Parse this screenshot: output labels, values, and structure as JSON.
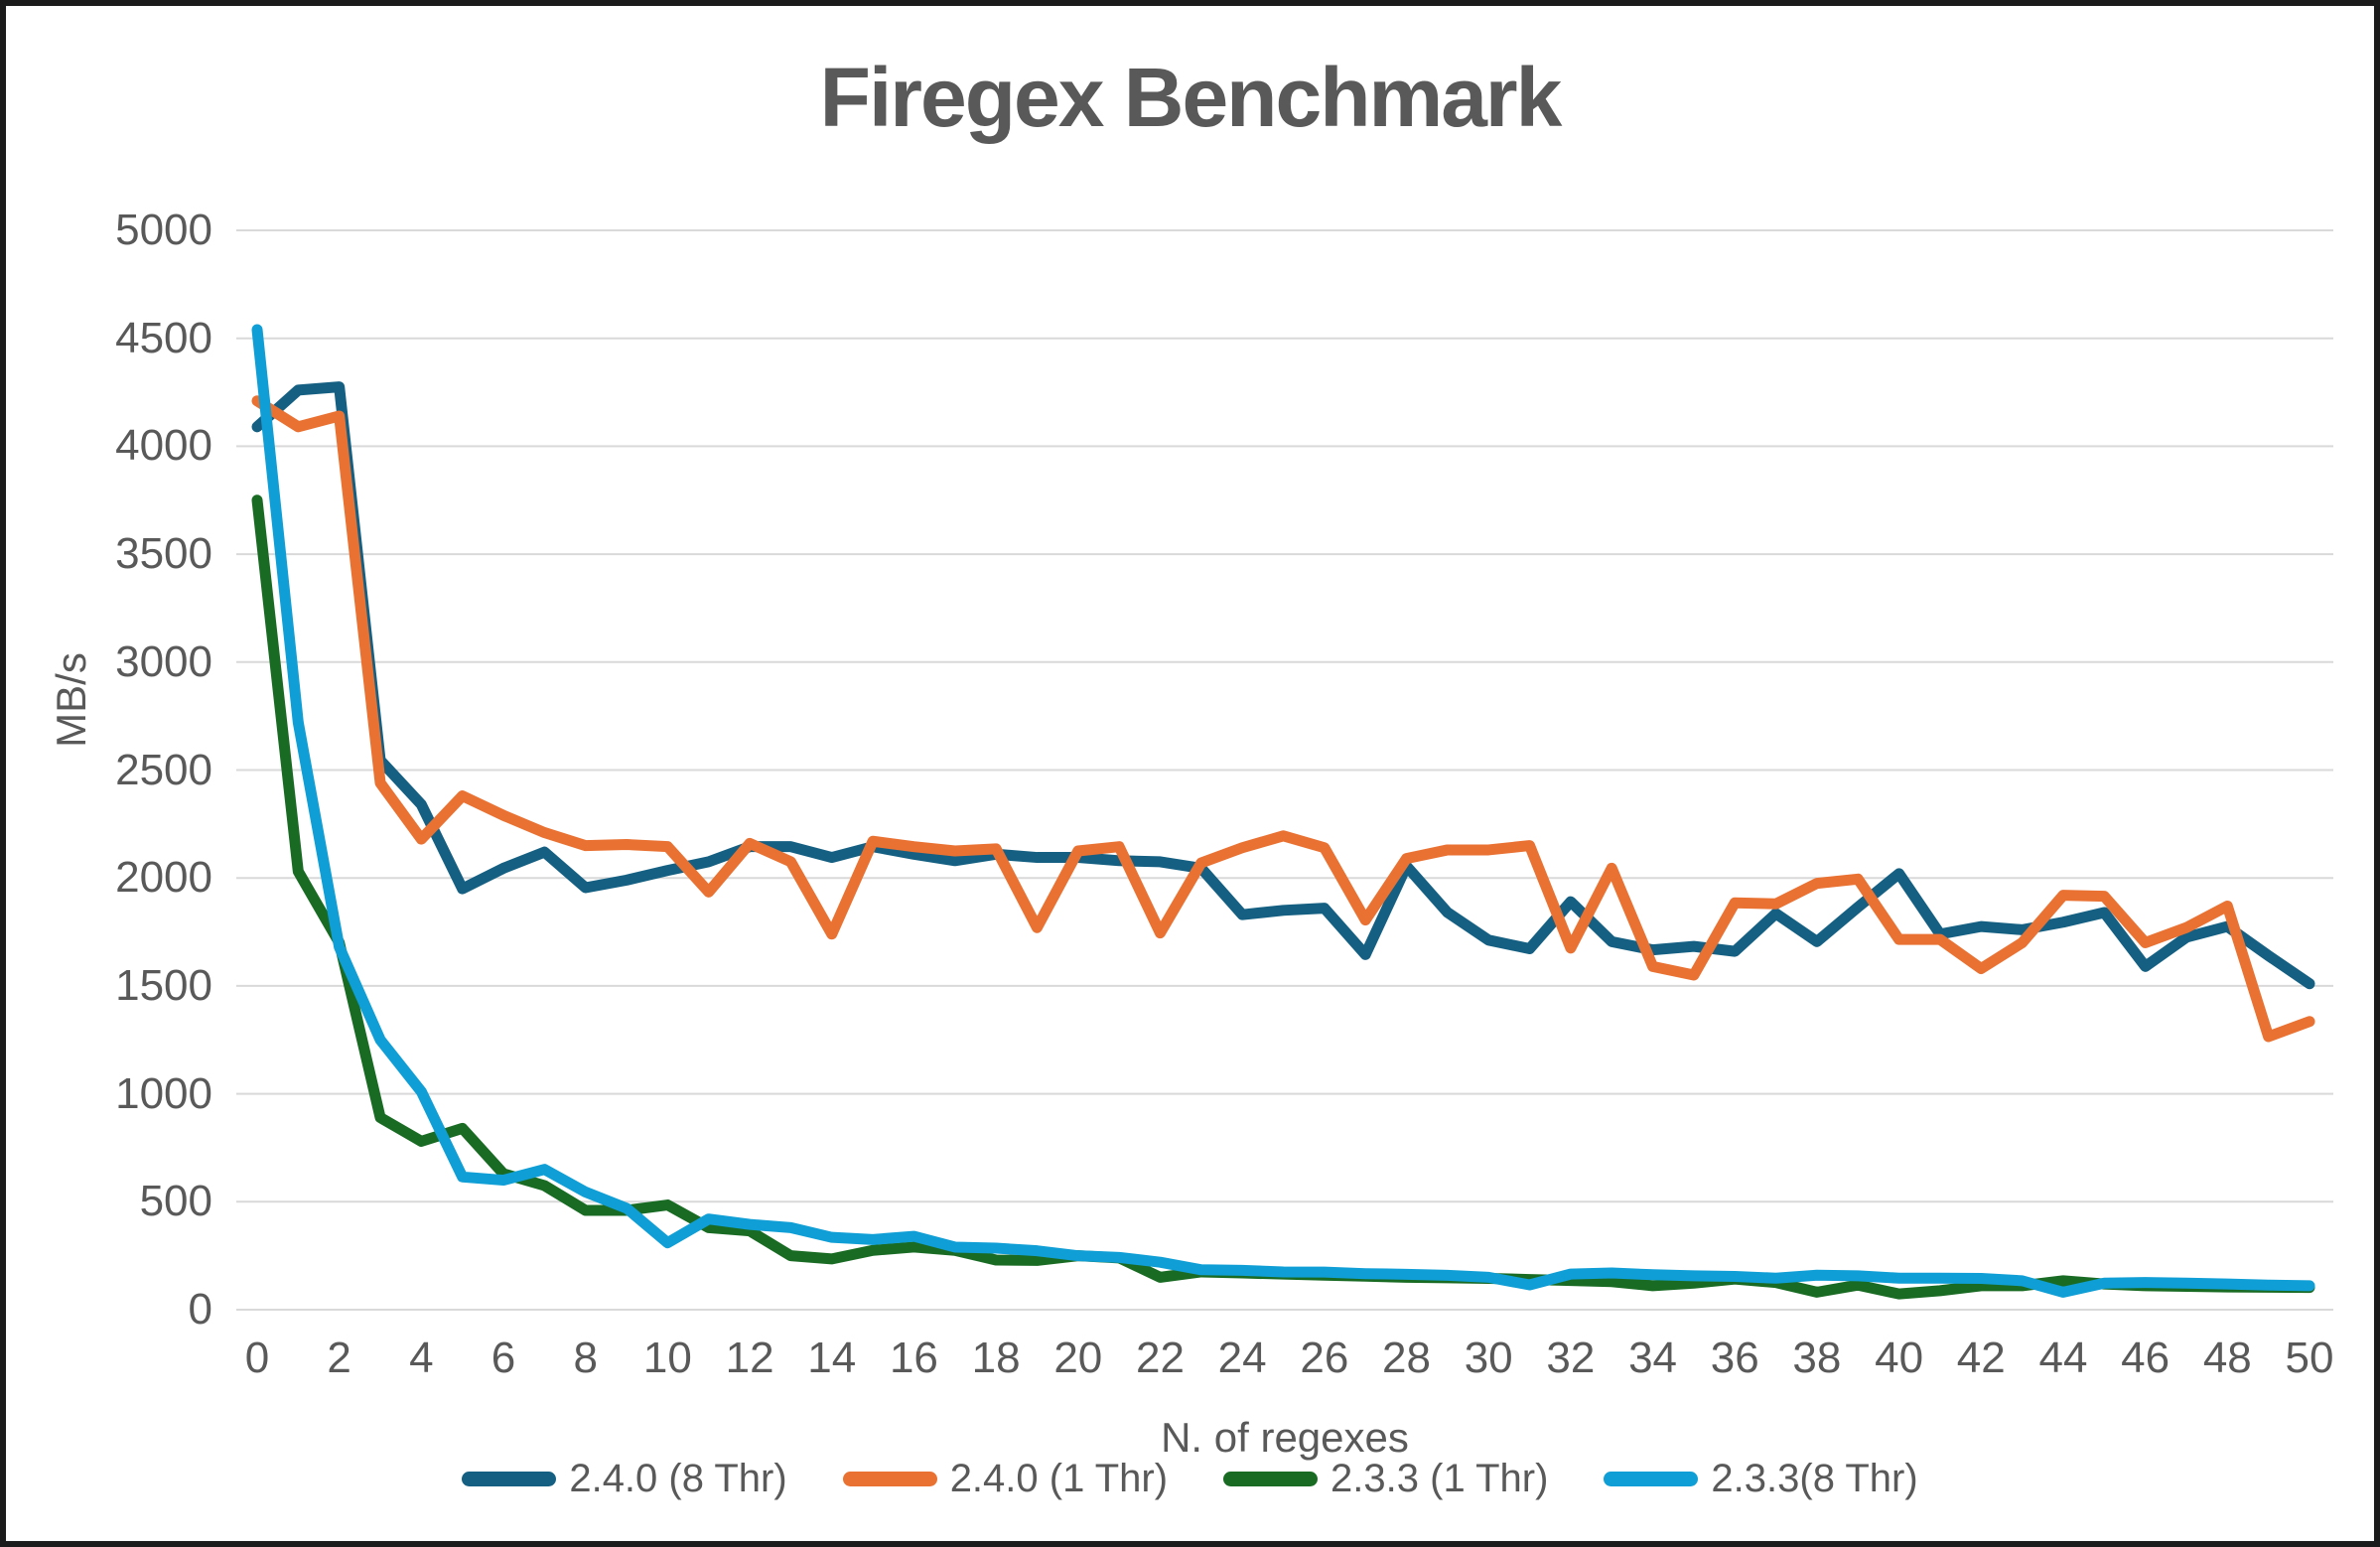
{
  "page": {
    "background": "#ffffff",
    "border_color": "#1b1b1b"
  },
  "chart_data": {
    "type": "line",
    "title": "Firegex Benchmark",
    "title_color": "#595959",
    "xlabel": "N. of regexes",
    "ylabel": "MB/s",
    "axis_text_color": "#595959",
    "gridline_color": "#d9d9d9",
    "grid": true,
    "legend_position": "bottom",
    "ylim": [
      0,
      5000
    ],
    "y_tick_step": 500,
    "y_ticks": [
      0,
      500,
      1000,
      1500,
      2000,
      2500,
      3000,
      3500,
      4000,
      4500,
      5000
    ],
    "x_ticks": [
      0,
      2,
      4,
      6,
      8,
      10,
      12,
      14,
      16,
      18,
      20,
      22,
      24,
      26,
      28,
      30,
      32,
      34,
      36,
      38,
      40,
      42,
      44,
      46,
      48,
      50
    ],
    "x_range": [
      0,
      50
    ],
    "series": [
      {
        "key": "2.4.0-8thr",
        "name": "2.4.0 (8 Thr)",
        "color": "#156082",
        "values": [
          4090,
          4260,
          4275,
          2545,
          2340,
          1950,
          2045,
          2120,
          1955,
          1990,
          2035,
          2075,
          2145,
          2145,
          2095,
          2145,
          2110,
          2080,
          2110,
          2095,
          2095,
          2080,
          2075,
          2045,
          1830,
          1850,
          1860,
          1645,
          2055,
          1840,
          1712,
          1672,
          1890,
          1705,
          1667,
          1683,
          1660,
          1835,
          1705,
          1865,
          2020,
          1740,
          1775,
          1760,
          1795,
          1840,
          1590,
          1725,
          1775,
          1640,
          1510
        ]
      },
      {
        "key": "2.4.0-1thr",
        "name": "2.4.0 (1 Thr)",
        "color": "#E97132",
        "values": [
          4210,
          4090,
          4140,
          2440,
          2180,
          2380,
          2290,
          2210,
          2150,
          2155,
          2145,
          1935,
          2160,
          2075,
          1740,
          2170,
          2145,
          2125,
          2135,
          1770,
          2125,
          2145,
          1745,
          2070,
          2140,
          2195,
          2140,
          1805,
          2090,
          2130,
          2130,
          2150,
          1675,
          2045,
          1590,
          1550,
          1885,
          1880,
          1975,
          1995,
          1715,
          1715,
          1580,
          1700,
          1920,
          1915,
          1700,
          1770,
          1870,
          1265,
          1335
        ]
      },
      {
        "key": "2.3.3-1thr",
        "name": "2.3.3 (1 Thr)",
        "color": "#196B24",
        "values": [
          3750,
          2030,
          1700,
          890,
          780,
          840,
          630,
          575,
          460,
          460,
          485,
          380,
          365,
          250,
          235,
          275,
          290,
          275,
          230,
          228,
          250,
          240,
          150,
          175,
          170,
          165,
          160,
          155,
          150,
          148,
          145,
          140,
          135,
          130,
          111,
          123,
          142,
          126,
          81,
          114,
          73,
          88,
          111,
          111,
          134,
          119,
          111,
          108,
          105,
          104,
          103
        ]
      },
      {
        "key": "2.3.3-8thr",
        "name": "2.3.3(8 Thr)",
        "color": "#0F9ED5",
        "values": [
          4540,
          2720,
          1680,
          1250,
          1010,
          615,
          600,
          650,
          545,
          470,
          310,
          420,
          395,
          380,
          335,
          325,
          340,
          290,
          285,
          273,
          250,
          242,
          220,
          185,
          182,
          175,
          174,
          167,
          164,
          159,
          150,
          115,
          165,
          170,
          162,
          157,
          154,
          146,
          160,
          157,
          146,
          146,
          145,
          134,
          81,
          123,
          126,
          123,
          119,
          114,
          111
        ]
      }
    ]
  }
}
